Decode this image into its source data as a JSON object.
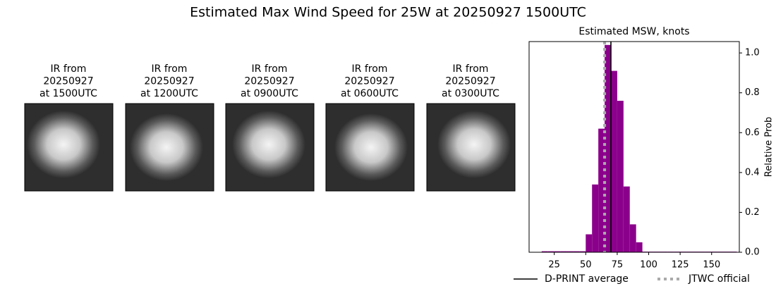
{
  "title": "Estimated Max Wind Speed for 25W at 20250927 1500UTC",
  "panels": [
    {
      "lines": [
        "IR from",
        "20250927",
        "at 1500UTC"
      ]
    },
    {
      "lines": [
        "IR from",
        "20250927",
        "at 1200UTC"
      ]
    },
    {
      "lines": [
        "IR from",
        "20250927",
        "at 0900UTC"
      ]
    },
    {
      "lines": [
        "IR from",
        "20250927",
        "at 0600UTC"
      ]
    },
    {
      "lines": [
        "IR from",
        "20250927",
        "at 0300UTC"
      ]
    }
  ],
  "chart_data": {
    "type": "histogram",
    "title": "Estimated MSW, knots",
    "y_label": "Relative Prob",
    "color": "#8b008b",
    "bins": [
      15,
      20,
      25,
      30,
      35,
      40,
      45,
      50,
      55,
      60,
      65,
      70,
      75,
      80,
      85,
      90,
      95,
      100,
      105,
      110,
      115,
      120,
      125,
      130,
      135,
      140,
      145,
      150,
      155,
      160,
      165,
      170
    ],
    "values": [
      0.005,
      0.005,
      0.005,
      0.005,
      0.005,
      0.005,
      0.005,
      0.09,
      0.34,
      0.62,
      1.04,
      0.91,
      0.76,
      0.33,
      0.14,
      0.05,
      0.003,
      0.003,
      0.003,
      0.003,
      0.003,
      0.003,
      0.003,
      0.003,
      0.003,
      0.003,
      0.003,
      0.003,
      0.003,
      0.003,
      0.003
    ],
    "xlim": [
      5,
      172
    ],
    "xticks": [
      25,
      50,
      75,
      100,
      125,
      150
    ],
    "ylim": [
      0,
      1.057
    ],
    "yticks": [
      {
        "value": 0,
        "label": "0.0"
      },
      0.2,
      0.4,
      0.6,
      0.8,
      {
        "value": 1,
        "label": "1.0"
      }
    ],
    "lines": [
      {
        "name": "D-PRINT average",
        "value": 70,
        "color": "#000000",
        "style": "solid"
      },
      {
        "name": "JTWC official",
        "value": 65,
        "color": "#aaaaaa",
        "style": "dotted"
      }
    ]
  }
}
